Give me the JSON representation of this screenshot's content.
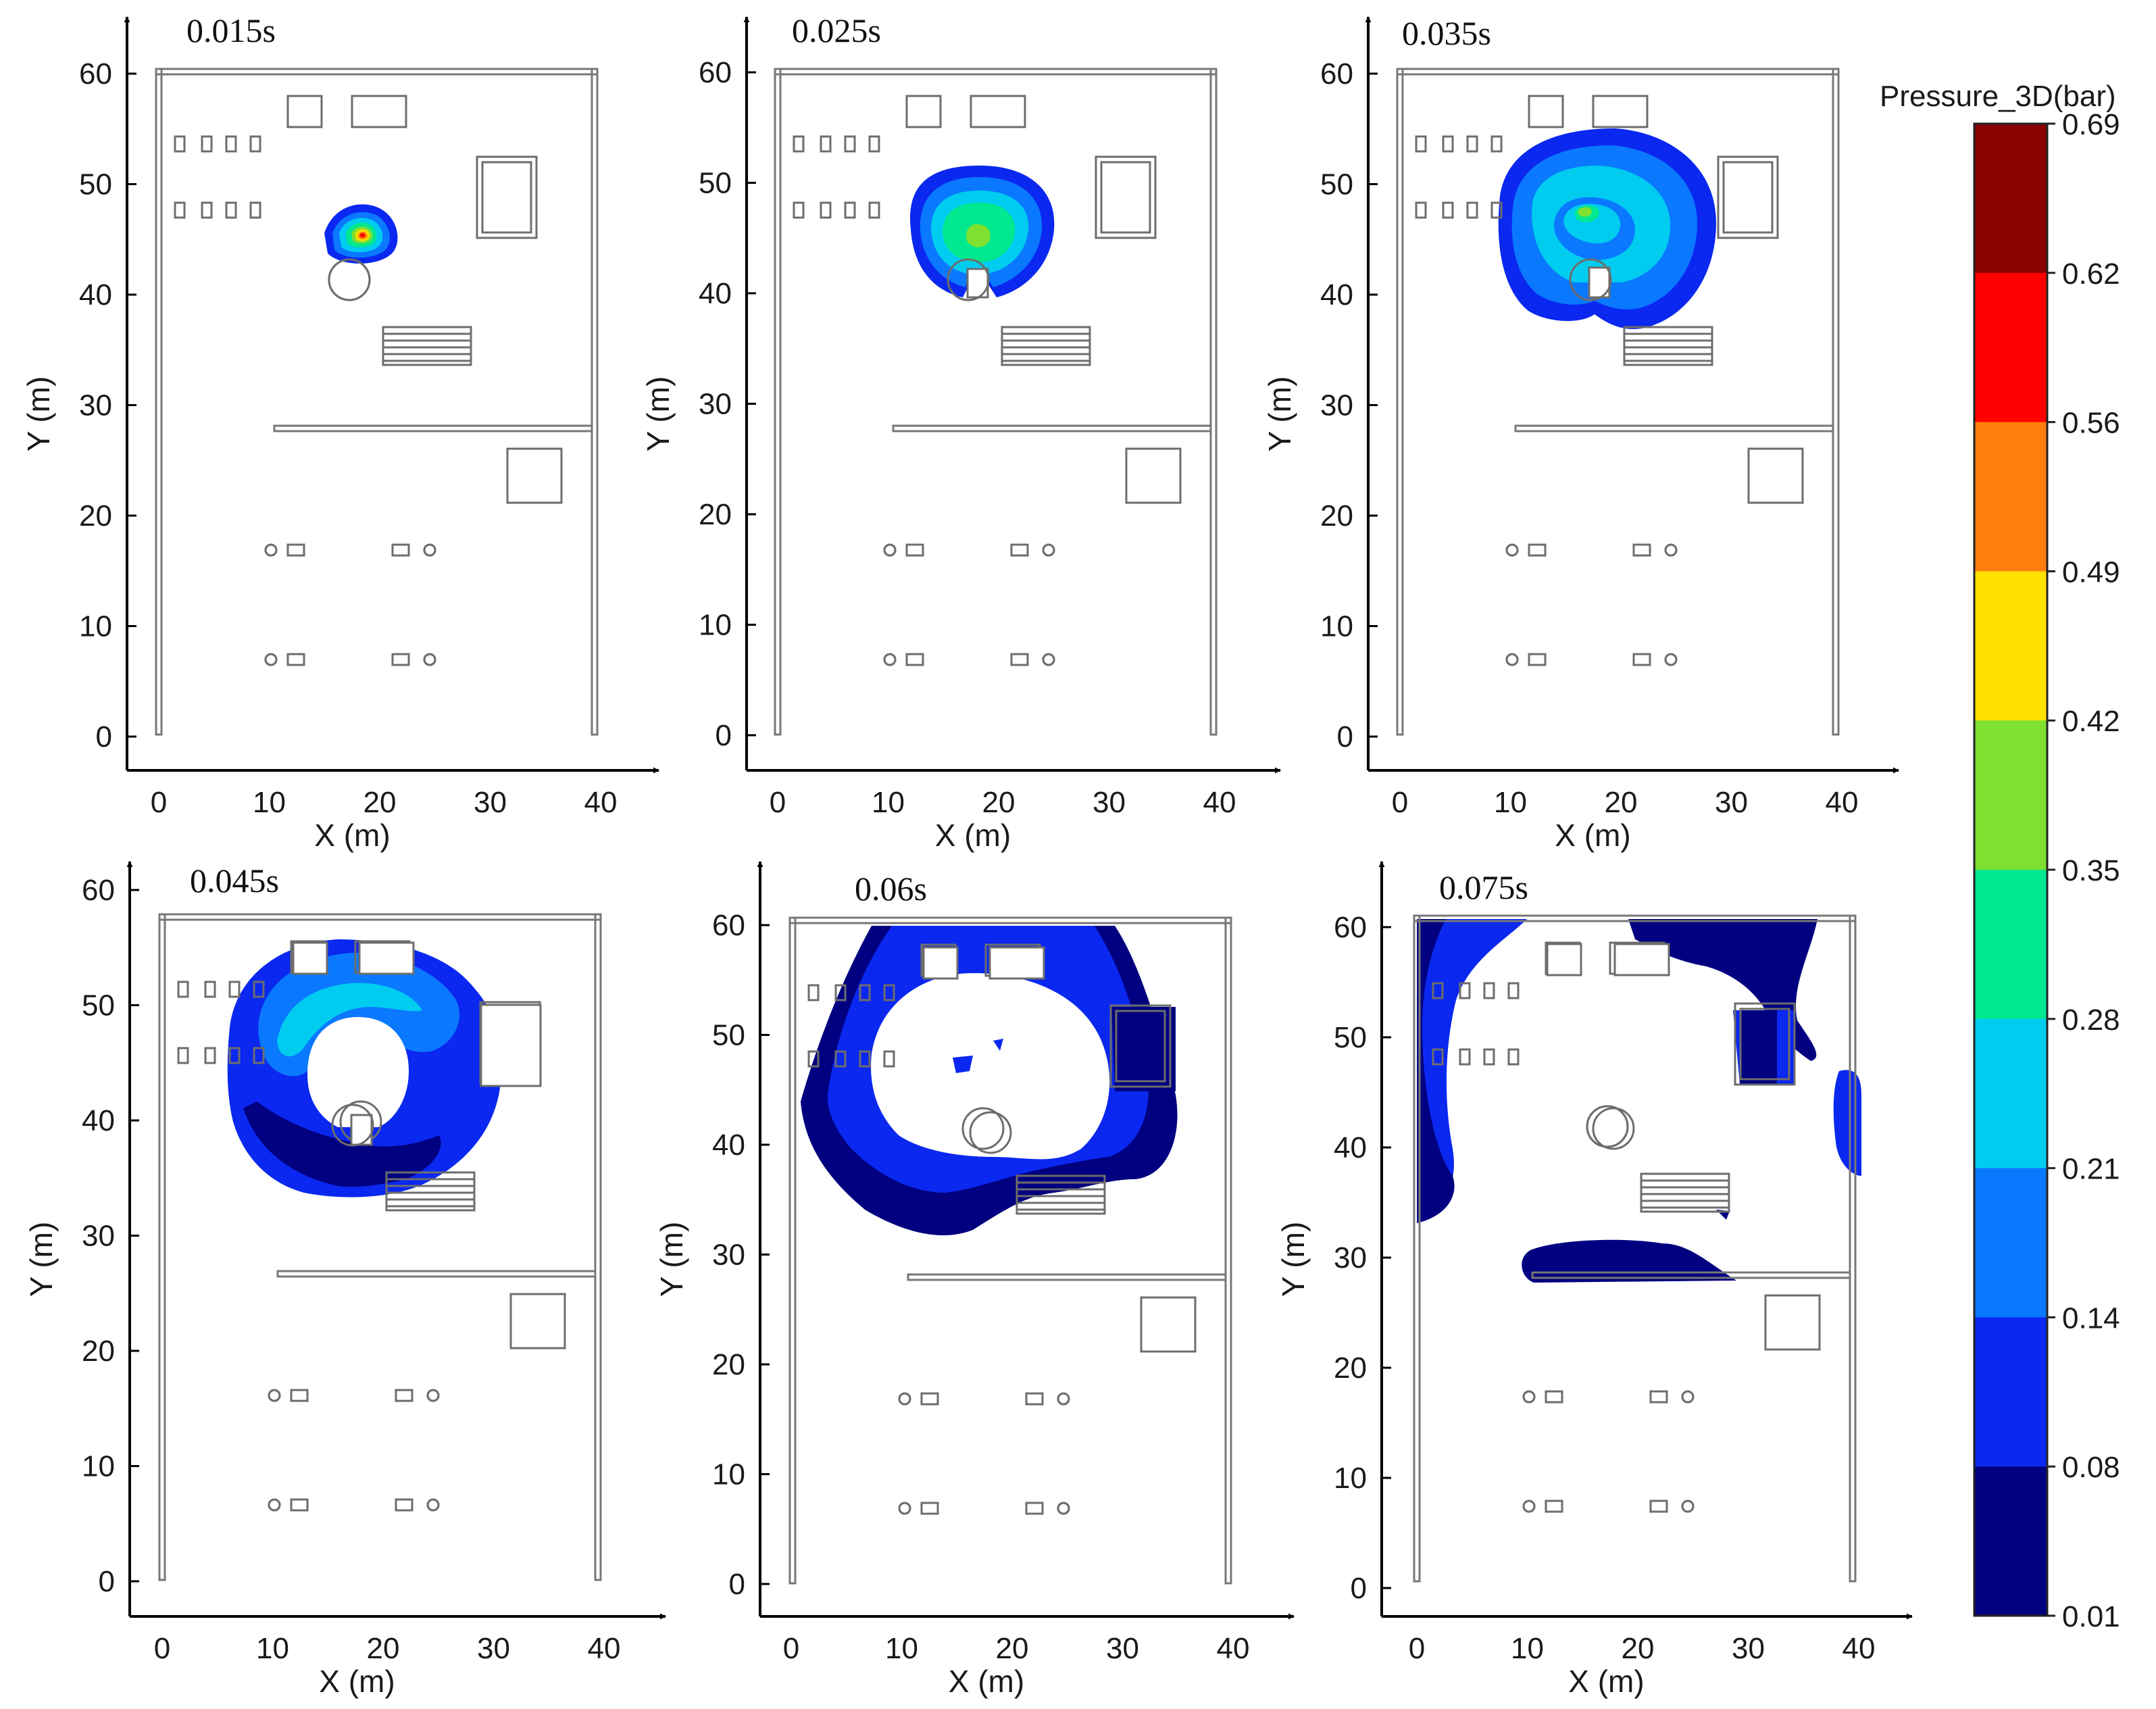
{
  "figure": {
    "panels": [
      {
        "title": "0.015s"
      },
      {
        "title": "0.025s"
      },
      {
        "title": "0.035s"
      },
      {
        "title": "0.045s"
      },
      {
        "title": "0.06s"
      },
      {
        "title": "0.075s"
      }
    ],
    "axes": {
      "xlabel": "X  (m)",
      "ylabel": "Y  (m)",
      "xticks": [
        "0",
        "10",
        "20",
        "30",
        "40"
      ],
      "yticks": [
        "0",
        "10",
        "20",
        "30",
        "40",
        "50",
        "60"
      ]
    },
    "colorbar": {
      "title": "Pressure_3D(bar)",
      "ticks": [
        "0.69",
        "0.62",
        "0.56",
        "0.49",
        "0.42",
        "0.35",
        "0.28",
        "0.21",
        "0.14",
        "0.08",
        "0.01"
      ],
      "colors": [
        "#8b0000",
        "#ff0000",
        "#ff7f0e",
        "#ffe000",
        "#7fe030",
        "#00e890",
        "#00ccf0",
        "#0a78ff",
        "#0a28f0",
        "#000080"
      ]
    }
  }
}
